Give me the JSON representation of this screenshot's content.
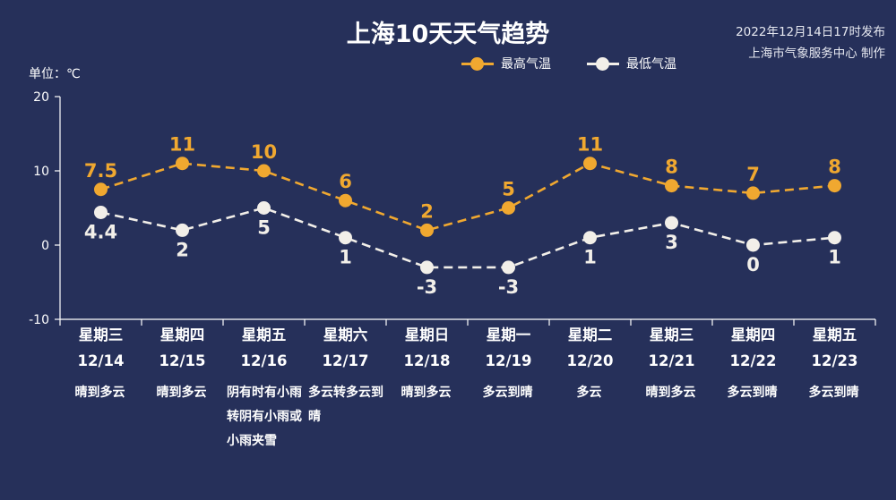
{
  "header": {
    "title": "上海10天天气趋势",
    "publish_time": "2022年12月14日17时发布",
    "publisher": "上海市气象服务中心 制作",
    "unit_label": "单位：℃"
  },
  "colors": {
    "background": "#26305a",
    "high": "#f0a830",
    "low": "#f2efe9",
    "axis": "#ffffff",
    "text": "#ffffff"
  },
  "days": [
    {
      "weekday": "星期三",
      "date": "12/14",
      "weather": "晴到多云"
    },
    {
      "weekday": "星期四",
      "date": "12/15",
      "weather": "晴到多云"
    },
    {
      "weekday": "星期五",
      "date": "12/16",
      "weather": "阴有时有小雨转阴有小雨或小雨夹雪"
    },
    {
      "weekday": "星期六",
      "date": "12/17",
      "weather": "多云转多云到晴"
    },
    {
      "weekday": "星期日",
      "date": "12/18",
      "weather": "晴到多云"
    },
    {
      "weekday": "星期一",
      "date": "12/19",
      "weather": "多云到晴"
    },
    {
      "weekday": "星期二",
      "date": "12/20",
      "weather": "多云"
    },
    {
      "weekday": "星期三",
      "date": "12/21",
      "weather": "晴到多云"
    },
    {
      "weekday": "星期四",
      "date": "12/22",
      "weather": "多云到晴"
    },
    {
      "weekday": "星期五",
      "date": "12/23",
      "weather": "多云到晴"
    }
  ],
  "chart_data": {
    "type": "line",
    "title": "上海10天天气趋势",
    "x": [
      "12/14",
      "12/15",
      "12/16",
      "12/17",
      "12/18",
      "12/19",
      "12/20",
      "12/21",
      "12/22",
      "12/23"
    ],
    "series": [
      {
        "name": "最高气温",
        "color": "#f0a830",
        "line_style": "dashed",
        "values": [
          7.5,
          11,
          10,
          6,
          2,
          5,
          11,
          8,
          7,
          8
        ],
        "labels": [
          "7.5",
          "11",
          "10",
          "6",
          "2",
          "5",
          "11",
          "8",
          "7",
          "8"
        ]
      },
      {
        "name": "最低气温",
        "color": "#f2efe9",
        "line_style": "dashed",
        "values": [
          4.4,
          2,
          5,
          1,
          -3,
          -3,
          1,
          3,
          0,
          1
        ],
        "labels": [
          "4.4",
          "2",
          "5",
          "1",
          "-3",
          "-3",
          "1",
          "3",
          "0",
          "1"
        ]
      }
    ],
    "ylabel": "单位：℃",
    "ylim": [
      -10,
      20
    ],
    "yticks": [
      -10,
      0,
      10,
      20
    ],
    "ytick_labels": [
      "-10",
      "0",
      "10",
      "20"
    ],
    "grid": false,
    "legend": "top-center"
  }
}
